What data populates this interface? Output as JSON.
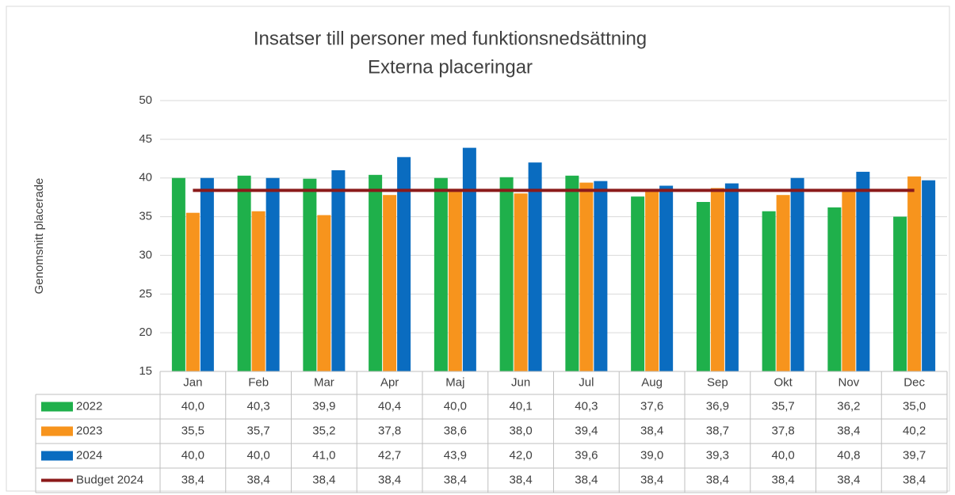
{
  "chart_data": {
    "type": "bar",
    "title": "Insatser till personer med funktionsnedsättning",
    "subtitle": "Externa placeringar",
    "y_label": "Genomsnitt placerade",
    "categories": [
      "Jan",
      "Feb",
      "Mar",
      "Apr",
      "Maj",
      "Jun",
      "Jul",
      "Aug",
      "Sep",
      "Okt",
      "Nov",
      "Dec"
    ],
    "series": [
      {
        "name": "2022",
        "color": "#1fb04b",
        "values": [
          40.0,
          40.3,
          39.9,
          40.4,
          40.0,
          40.1,
          40.3,
          37.6,
          36.9,
          35.7,
          36.2,
          35.0
        ],
        "value_labels": [
          "40,0",
          "40,3",
          "39,9",
          "40,4",
          "40,0",
          "40,1",
          "40,3",
          "37,6",
          "36,9",
          "35,7",
          "36,2",
          "35,0"
        ]
      },
      {
        "name": "2023",
        "color": "#f7941d",
        "values": [
          35.5,
          35.7,
          35.2,
          37.8,
          38.6,
          38.0,
          39.4,
          38.4,
          38.7,
          37.8,
          38.4,
          40.2
        ],
        "value_labels": [
          "35,5",
          "35,7",
          "35,2",
          "37,8",
          "38,6",
          "38,0",
          "39,4",
          "38,4",
          "38,7",
          "37,8",
          "38,4",
          "40,2"
        ]
      },
      {
        "name": "2024",
        "color": "#0a6cc0",
        "values": [
          40.0,
          40.0,
          41.0,
          42.7,
          43.9,
          42.0,
          39.6,
          39.0,
          39.3,
          40.0,
          40.8,
          39.7
        ],
        "value_labels": [
          "40,0",
          "40,0",
          "41,0",
          "42,7",
          "43,9",
          "42,0",
          "39,6",
          "39,0",
          "39,3",
          "40,0",
          "40,8",
          "39,7"
        ]
      },
      {
        "name": "Budget 2024",
        "type": "line",
        "color": "#8b1a1a",
        "values": [
          38.4,
          38.4,
          38.4,
          38.4,
          38.4,
          38.4,
          38.4,
          38.4,
          38.4,
          38.4,
          38.4,
          38.4
        ],
        "value_labels": [
          "38,4",
          "38,4",
          "38,4",
          "38,4",
          "38,4",
          "38,4",
          "38,4",
          "38,4",
          "38,4",
          "38,4",
          "38,4",
          "38,4"
        ]
      }
    ],
    "ylim": [
      15,
      50
    ],
    "yticks": [
      15,
      20,
      25,
      30,
      35,
      40,
      45,
      50
    ],
    "grid": true
  }
}
